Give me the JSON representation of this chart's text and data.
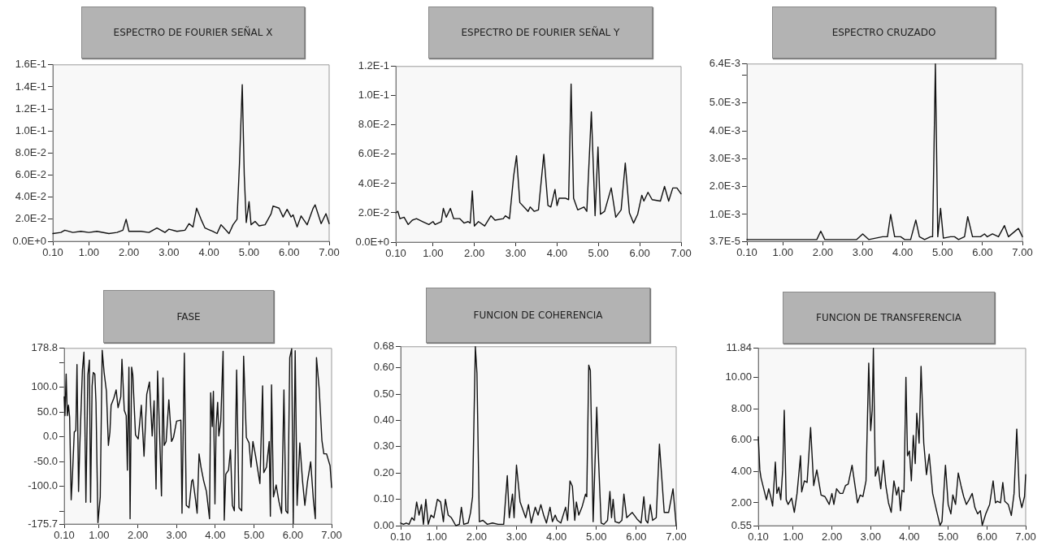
{
  "chart_data": [
    {
      "type": "line",
      "title": "ESPECTRO DE FOURIER SEÑAL X",
      "color": "#111111",
      "marker": "none",
      "line_style": "solid",
      "x": [
        0.1,
        0.3,
        0.4,
        0.6,
        0.8,
        1.0,
        1.2,
        1.5,
        1.7,
        1.85,
        1.93,
        2.0,
        2.3,
        2.5,
        2.7,
        2.9,
        3.0,
        3.2,
        3.4,
        3.5,
        3.6,
        3.69,
        3.8,
        3.9,
        4.1,
        4.2,
        4.3,
        4.4,
        4.5,
        4.6,
        4.7,
        4.76,
        4.83,
        4.88,
        4.93,
        5.0,
        5.05,
        5.15,
        5.25,
        5.4,
        5.55,
        5.6,
        5.75,
        5.85,
        5.95,
        6.05,
        6.1,
        6.2,
        6.3,
        6.45,
        6.6,
        6.65,
        6.8,
        6.92,
        7.0
      ],
      "values": [
        0.007,
        0.008,
        0.01,
        0.008,
        0.009,
        0.008,
        0.009,
        0.007,
        0.008,
        0.01,
        0.02,
        0.009,
        0.009,
        0.008,
        0.012,
        0.008,
        0.011,
        0.009,
        0.01,
        0.016,
        0.013,
        0.03,
        0.02,
        0.012,
        0.009,
        0.007,
        0.015,
        0.011,
        0.007,
        0.015,
        0.02,
        0.07,
        0.142,
        0.06,
        0.017,
        0.036,
        0.015,
        0.018,
        0.014,
        0.015,
        0.025,
        0.032,
        0.03,
        0.022,
        0.029,
        0.022,
        0.024,
        0.013,
        0.023,
        0.015,
        0.03,
        0.033,
        0.016,
        0.025,
        0.016
      ],
      "xlim": [
        0.1,
        7.0
      ],
      "xticks": [
        {
          "value": 0.1,
          "label": "0.10"
        },
        {
          "value": 1,
          "label": "1.00"
        },
        {
          "value": 2,
          "label": "2.00"
        },
        {
          "value": 3,
          "label": "3.00"
        },
        {
          "value": 4,
          "label": "4.00"
        },
        {
          "value": 5,
          "label": "5.00"
        },
        {
          "value": 6,
          "label": "6.00"
        },
        {
          "value": 7,
          "label": "7.00"
        }
      ],
      "ylim": [
        0,
        0.16
      ],
      "yticks": [
        {
          "value": 0,
          "label": "0.0E+0"
        },
        {
          "value": 0.02,
          "label": "2.0E-2"
        },
        {
          "value": 0.04,
          "label": "4.0E-2"
        },
        {
          "value": 0.06,
          "label": "6.0E-2"
        },
        {
          "value": 0.08,
          "label": "8.0E-2"
        },
        {
          "value": 0.1,
          "label": "1.0E-1"
        },
        {
          "value": 0.12,
          "label": "1.2E-1"
        },
        {
          "value": 0.14,
          "label": "1.4E-1"
        },
        {
          "value": 0.16,
          "label": "1.6E-1"
        }
      ]
    },
    {
      "type": "line",
      "title": "ESPECTRO DE FOURIER SEÑAL Y",
      "color": "#111111",
      "marker": "none",
      "line_style": "solid",
      "x": [
        0.1,
        0.15,
        0.2,
        0.3,
        0.4,
        0.5,
        0.6,
        0.75,
        0.9,
        1.0,
        1.05,
        1.2,
        1.25,
        1.32,
        1.42,
        1.5,
        1.65,
        1.75,
        1.85,
        1.9,
        1.95,
        2.0,
        2.1,
        2.25,
        2.4,
        2.5,
        2.7,
        2.75,
        2.85,
        2.95,
        3.02,
        3.1,
        3.3,
        3.35,
        3.45,
        3.55,
        3.68,
        3.78,
        3.85,
        3.95,
        4.0,
        4.05,
        4.2,
        4.28,
        4.34,
        4.4,
        4.5,
        4.65,
        4.72,
        4.83,
        4.92,
        4.99,
        5.05,
        5.15,
        5.31,
        5.42,
        5.55,
        5.65,
        5.75,
        5.85,
        5.95,
        6.05,
        6.1,
        6.2,
        6.3,
        6.5,
        6.6,
        6.7,
        6.8,
        6.9,
        7.0
      ],
      "values": [
        0.02,
        0.021,
        0.016,
        0.017,
        0.012,
        0.015,
        0.016,
        0.014,
        0.012,
        0.014,
        0.012,
        0.014,
        0.023,
        0.017,
        0.023,
        0.016,
        0.016,
        0.013,
        0.014,
        0.013,
        0.035,
        0.011,
        0.014,
        0.011,
        0.018,
        0.015,
        0.016,
        0.018,
        0.016,
        0.045,
        0.059,
        0.027,
        0.021,
        0.024,
        0.021,
        0.022,
        0.06,
        0.025,
        0.024,
        0.036,
        0.025,
        0.03,
        0.03,
        0.029,
        0.108,
        0.03,
        0.022,
        0.024,
        0.021,
        0.089,
        0.018,
        0.065,
        0.019,
        0.021,
        0.037,
        0.017,
        0.022,
        0.054,
        0.02,
        0.013,
        0.019,
        0.032,
        0.028,
        0.034,
        0.029,
        0.028,
        0.038,
        0.028,
        0.037,
        0.037,
        0.033
      ],
      "xlim": [
        0.1,
        7.0
      ],
      "xticks": [
        {
          "value": 0.1,
          "label": "0.10"
        },
        {
          "value": 1,
          "label": "1.00"
        },
        {
          "value": 2,
          "label": "2.00"
        },
        {
          "value": 3,
          "label": "3.00"
        },
        {
          "value": 4,
          "label": "4.00"
        },
        {
          "value": 5,
          "label": "5.00"
        },
        {
          "value": 6,
          "label": "6.00"
        },
        {
          "value": 7,
          "label": "7.00"
        }
      ],
      "ylim": [
        0,
        0.12
      ],
      "yticks": [
        {
          "value": 0,
          "label": "0.0E+0"
        },
        {
          "value": 0.02,
          "label": "2.0E-2"
        },
        {
          "value": 0.04,
          "label": "4.0E-2"
        },
        {
          "value": 0.06,
          "label": "6.0E-2"
        },
        {
          "value": 0.08,
          "label": "8.0E-2"
        },
        {
          "value": 0.1,
          "label": "1.0E-1"
        },
        {
          "value": 0.12,
          "label": "1.2E-1"
        }
      ]
    },
    {
      "type": "line",
      "title": "ESPECTRO CRUZADO",
      "color": "#111111",
      "marker": "none",
      "line_style": "solid",
      "x": [
        0.1,
        0.5,
        1.2,
        1.5,
        1.85,
        1.95,
        2.05,
        2.6,
        2.85,
        3.0,
        3.15,
        3.5,
        3.55,
        3.62,
        3.7,
        3.8,
        3.95,
        4.05,
        4.2,
        4.33,
        4.42,
        4.55,
        4.7,
        4.75,
        4.82,
        4.88,
        4.95,
        5.02,
        5.2,
        5.3,
        5.4,
        5.55,
        5.63,
        5.75,
        5.95,
        6.05,
        6.12,
        6.25,
        6.4,
        6.55,
        6.65,
        6.9,
        7.0
      ],
      "values": [
        0.0001,
        0.0001,
        0.0001,
        0.0001,
        0.0001,
        0.0004,
        0.0001,
        0.0001,
        0.0001,
        0.0003,
        0.0001,
        0.0002,
        0.0002,
        0.0002,
        0.001,
        0.0002,
        0.0002,
        0.0001,
        0.0001,
        0.0008,
        0.0002,
        0.0001,
        0.0002,
        0.0002,
        0.0064,
        0.0002,
        0.00122,
        0.00015,
        0.0002,
        0.0002,
        0.0001,
        0.0002,
        0.00092,
        0.0002,
        0.0002,
        0.0003,
        0.0002,
        0.0003,
        0.0002,
        0.0006,
        0.0002,
        0.0005,
        0.0002
      ],
      "xlim": [
        0.1,
        7.0
      ],
      "xticks": [
        {
          "value": 0.1,
          "label": "0.10"
        },
        {
          "value": 1,
          "label": "1.00"
        },
        {
          "value": 2,
          "label": "2.00"
        },
        {
          "value": 3,
          "label": "3.00"
        },
        {
          "value": 4,
          "label": "4.00"
        },
        {
          "value": 5,
          "label": "5.00"
        },
        {
          "value": 6,
          "label": "6.00"
        },
        {
          "value": 7,
          "label": "7.00"
        }
      ],
      "ylim": [
        3.7e-05,
        0.0064
      ],
      "yticks": [
        {
          "value": 3.7e-05,
          "label": "3.7E-5"
        },
        {
          "value": 0.001,
          "label": "1.0E-3"
        },
        {
          "value": 0.002,
          "label": "2.0E-3"
        },
        {
          "value": 0.003,
          "label": "3.0E-3"
        },
        {
          "value": 0.004,
          "label": "4.0E-3"
        },
        {
          "value": 0.005,
          "label": "5.0E-3"
        },
        {
          "value": 0.006,
          "label": null
        },
        {
          "value": 0.0064,
          "label": "6.4E-3"
        }
      ]
    },
    {
      "type": "line",
      "title": "FASE",
      "color": "#111111",
      "marker": "none",
      "line_style": "solid",
      "x": [
        0.1,
        0.12,
        0.15,
        0.18,
        0.21,
        0.24,
        0.28,
        0.31,
        0.36,
        0.4,
        0.43,
        0.47,
        0.5,
        0.57,
        0.61,
        0.66,
        0.71,
        0.75,
        0.78,
        0.82,
        0.85,
        0.89,
        0.92,
        0.97,
        1.03,
        1.08,
        1.13,
        1.19,
        1.24,
        1.28,
        1.31,
        1.38,
        1.44,
        1.49,
        1.56,
        1.59,
        1.65,
        1.7,
        1.73,
        1.77,
        1.8,
        1.84,
        1.87,
        1.94,
        2.01,
        2.09,
        2.16,
        2.23,
        2.3,
        2.37,
        2.42,
        2.47,
        2.51,
        2.56,
        2.61,
        2.65,
        2.68,
        2.73,
        2.8,
        2.87,
        2.92,
        3.0,
        3.11,
        3.14,
        3.2,
        3.25,
        3.32,
        3.39,
        3.42,
        3.49,
        3.53,
        3.58,
        3.63,
        3.7,
        3.77,
        3.85,
        3.88,
        3.92,
        3.95,
        3.99,
        4.02,
        4.06,
        4.09,
        4.14,
        4.2,
        4.23,
        4.27,
        4.34,
        4.39,
        4.44,
        4.49,
        4.55,
        4.61,
        4.68,
        4.73,
        4.8,
        4.87,
        4.92,
        4.97,
        5.04,
        5.15,
        5.22,
        5.25,
        5.32,
        5.39,
        5.42,
        5.45,
        5.5,
        5.57,
        5.64,
        5.71,
        5.77,
        5.82,
        5.87,
        5.92,
        5.97,
        6.01,
        6.06,
        6.11,
        6.18,
        6.25,
        6.31,
        6.38,
        6.46,
        6.53,
        6.58,
        6.61,
        6.68,
        6.75,
        6.8,
        6.87,
        6.96,
        7.0
      ],
      "values": [
        81,
        43,
        127,
        43,
        64,
        40,
        -127,
        -83,
        10,
        13,
        146,
        -110,
        -23,
        135,
        171,
        -132,
        125,
        155,
        -132,
        103,
        130,
        127,
        70,
        -173,
        -121,
        175,
        130,
        92,
        -17,
        10,
        64,
        78,
        95,
        59,
        81,
        157,
        54,
        43,
        -67,
        141,
        -165,
        141,
        125,
        4,
        -4,
        64,
        -39,
        86,
        111,
        2,
        73,
        -105,
        133,
        10,
        -119,
        119,
        -17,
        -9,
        75,
        -9,
        -1,
        32,
        34,
        -154,
        169,
        -138,
        -143,
        -89,
        -86,
        -127,
        -154,
        -34,
        -61,
        -89,
        -110,
        -165,
        89,
        21,
        92,
        -135,
        21,
        70,
        2,
        32,
        173,
        -168,
        -75,
        -67,
        -26,
        -138,
        -149,
        135,
        -143,
        -149,
        163,
        -1,
        -12,
        -61,
        -9,
        -39,
        -94,
        103,
        -72,
        -61,
        -9,
        -160,
        105,
        -121,
        -97,
        -130,
        -154,
        95,
        -149,
        -154,
        160,
        178,
        -175,
        174,
        -138,
        -12,
        -89,
        -138,
        -89,
        -50,
        -127,
        -165,
        160,
        97,
        -7,
        -34,
        -34,
        -58,
        -102
      ],
      "xlim": [
        0.1,
        7.0
      ],
      "xticks": [
        {
          "value": 0.1,
          "label": "0.10"
        },
        {
          "value": 1,
          "label": "1.00"
        },
        {
          "value": 2,
          "label": "2.00"
        },
        {
          "value": 3,
          "label": "3.00"
        },
        {
          "value": 4,
          "label": "4.00"
        },
        {
          "value": 5,
          "label": "5.00"
        },
        {
          "value": 6,
          "label": "6.00"
        },
        {
          "value": 7,
          "label": "7.00"
        }
      ],
      "ylim": [
        -175.7,
        178.8
      ],
      "yticks": [
        {
          "value": -175.7,
          "label": "-175.7"
        },
        {
          "value": -150,
          "label": null
        },
        {
          "value": -100,
          "label": "-100.0"
        },
        {
          "value": -50,
          "label": "-50.0"
        },
        {
          "value": 0,
          "label": "0.0"
        },
        {
          "value": 50,
          "label": "50.0"
        },
        {
          "value": 100,
          "label": "100.0"
        },
        {
          "value": 150,
          "label": null
        },
        {
          "value": 178.8,
          "label": "178.8"
        }
      ]
    },
    {
      "type": "line",
      "title": "FUNCION DE COHERENCIA",
      "color": "#111111",
      "marker": "none",
      "line_style": "solid",
      "x": [
        0.1,
        0.17,
        0.24,
        0.31,
        0.38,
        0.44,
        0.5,
        0.56,
        0.62,
        0.67,
        0.73,
        0.79,
        0.86,
        0.93,
        1.02,
        1.1,
        1.17,
        1.22,
        1.29,
        1.37,
        1.48,
        1.57,
        1.62,
        1.68,
        1.79,
        1.85,
        1.9,
        1.97,
        2.01,
        2.07,
        2.16,
        2.27,
        2.4,
        2.54,
        2.68,
        2.77,
        2.82,
        2.9,
        2.94,
        3.0,
        3.09,
        3.16,
        3.23,
        3.3,
        3.37,
        3.47,
        3.54,
        3.61,
        3.68,
        3.75,
        3.84,
        3.9,
        3.97,
        4.02,
        4.11,
        4.23,
        4.28,
        4.34,
        4.4,
        4.46,
        4.5,
        4.56,
        4.64,
        4.73,
        4.76,
        4.81,
        4.85,
        4.92,
        5.01,
        5.05,
        5.12,
        5.19,
        5.28,
        5.34,
        5.38,
        5.42,
        5.47,
        5.57,
        5.64,
        5.69,
        5.76,
        5.83,
        5.9,
        6.02,
        6.12,
        6.19,
        6.24,
        6.29,
        6.35,
        6.41,
        6.5,
        6.58,
        6.64,
        6.7,
        6.81,
        6.92,
        7.0
      ],
      "values": [
        0.01,
        0.005,
        0.01,
        0.005,
        0.03,
        0.02,
        0.09,
        0.04,
        0.08,
        0.005,
        0.1,
        0.005,
        0.04,
        0.03,
        0.1,
        0.09,
        0.015,
        0.1,
        0.04,
        0.03,
        0,
        0.005,
        0.07,
        0.005,
        0.01,
        0.05,
        0.11,
        0.68,
        0.58,
        0.015,
        0.02,
        0.005,
        0.01,
        0.005,
        0.005,
        0.19,
        0.03,
        0.12,
        0.03,
        0.23,
        0.09,
        0.06,
        0.03,
        0.08,
        0.01,
        0.07,
        0.04,
        0.08,
        0.04,
        0.01,
        0.07,
        0.015,
        0.04,
        0.02,
        0.01,
        0.07,
        0.02,
        0.17,
        0.15,
        0.02,
        0.09,
        0.04,
        0.07,
        0.12,
        0.11,
        0.61,
        0.59,
        0.015,
        0.45,
        0.27,
        0.01,
        0.005,
        0.02,
        0.13,
        0.03,
        0.1,
        0.015,
        0.01,
        0.02,
        0.12,
        0.03,
        0.04,
        0.05,
        0.025,
        0.01,
        0.11,
        0.02,
        0.01,
        0.08,
        0.02,
        0.03,
        0.31,
        0.18,
        0.05,
        0.05,
        0.14,
        0
      ],
      "xlim": [
        0.1,
        7.0
      ],
      "xticks": [
        {
          "value": 0.1,
          "label": "0.10"
        },
        {
          "value": 1,
          "label": "1.00"
        },
        {
          "value": 2,
          "label": "2.00"
        },
        {
          "value": 3,
          "label": "3.00"
        },
        {
          "value": 4,
          "label": "4.00"
        },
        {
          "value": 5,
          "label": "5.00"
        },
        {
          "value": 6,
          "label": "6.00"
        },
        {
          "value": 7,
          "label": "7.00"
        }
      ],
      "ylim": [
        0,
        0.68
      ],
      "yticks": [
        {
          "value": 0,
          "label": "0.00"
        },
        {
          "value": 0.1,
          "label": "0.10"
        },
        {
          "value": 0.2,
          "label": "0.20"
        },
        {
          "value": 0.3,
          "label": "0.30"
        },
        {
          "value": 0.4,
          "label": "0.40"
        },
        {
          "value": 0.5,
          "label": "0.50"
        },
        {
          "value": 0.6,
          "label": "0.60"
        },
        {
          "value": 0.68,
          "label": "0.68"
        }
      ]
    },
    {
      "type": "line",
      "title": "FUNCION DE TRANSFERENCIA",
      "color": "#111111",
      "marker": "none",
      "line_style": "solid",
      "x": [
        0.1,
        0.14,
        0.17,
        0.24,
        0.31,
        0.37,
        0.42,
        0.47,
        0.54,
        0.58,
        0.63,
        0.68,
        0.73,
        0.77,
        0.82,
        0.87,
        0.96,
        1.03,
        1.1,
        1.19,
        1.22,
        1.29,
        1.36,
        1.45,
        1.53,
        1.61,
        1.72,
        1.82,
        1.93,
        2.0,
        2.05,
        2.12,
        2.21,
        2.28,
        2.35,
        2.42,
        2.52,
        2.59,
        2.66,
        2.73,
        2.8,
        2.88,
        2.95,
        3.0,
        3.04,
        3.07,
        3.12,
        3.19,
        3.26,
        3.33,
        3.39,
        3.46,
        3.53,
        3.6,
        3.67,
        3.72,
        3.77,
        3.81,
        3.86,
        3.91,
        3.95,
        4.0,
        4.05,
        4.1,
        4.15,
        4.19,
        4.25,
        4.3,
        4.37,
        4.44,
        4.51,
        4.6,
        4.7,
        4.79,
        4.84,
        4.93,
        5.0,
        5.07,
        5.12,
        5.19,
        5.26,
        5.33,
        5.4,
        5.47,
        5.54,
        5.62,
        5.69,
        5.76,
        5.83,
        5.88,
        5.97,
        6.07,
        6.16,
        6.22,
        6.27,
        6.35,
        6.41,
        6.46,
        6.55,
        6.63,
        6.7,
        6.77,
        6.84,
        6.9,
        6.97,
        7.0
      ],
      "values": [
        6.2,
        4.1,
        3.6,
        2.9,
        2.2,
        2.9,
        2.4,
        1.8,
        4.6,
        2.6,
        3.0,
        2.2,
        4.1,
        7.9,
        2.2,
        1.9,
        2.3,
        1.4,
        2.6,
        5.0,
        2.7,
        3.4,
        3.3,
        6.8,
        3.1,
        4.1,
        2.5,
        2.4,
        1.9,
        2.6,
        1.9,
        2.9,
        2.6,
        2.6,
        3.1,
        3.2,
        4.4,
        3.2,
        2.0,
        2.5,
        2.4,
        3.4,
        10.9,
        6.6,
        7.9,
        11.84,
        3.7,
        4.3,
        2.9,
        4.7,
        3.1,
        2.0,
        1.4,
        3.4,
        2.5,
        3.0,
        1.5,
        2.8,
        2.7,
        10.0,
        5.0,
        5.3,
        3.4,
        6.3,
        4.5,
        7.7,
        5.8,
        10.7,
        5.8,
        3.8,
        5.1,
        2.6,
        1.5,
        0.57,
        0.8,
        4.4,
        1.9,
        1.3,
        2.5,
        1.9,
        3.9,
        3.1,
        2.4,
        1.9,
        2.2,
        2.6,
        1.7,
        1.3,
        1.5,
        0.57,
        1.3,
        1.9,
        3.4,
        2.0,
        2.1,
        2.0,
        3.3,
        2.1,
        1.9,
        1.2,
        2.6,
        6.7,
        2.4,
        1.7,
        2.4,
        3.8
      ],
      "xlim": [
        0.1,
        7.0
      ],
      "xticks": [
        {
          "value": 0.1,
          "label": "0.10"
        },
        {
          "value": 1,
          "label": "1.00"
        },
        {
          "value": 2,
          "label": "2.00"
        },
        {
          "value": 3,
          "label": "3.00"
        },
        {
          "value": 4,
          "label": "4.00"
        },
        {
          "value": 5,
          "label": "5.00"
        },
        {
          "value": 6,
          "label": "6.00"
        },
        {
          "value": 7,
          "label": "7.00"
        }
      ],
      "ylim": [
        0.55,
        11.84
      ],
      "yticks": [
        {
          "value": 0.55,
          "label": "0.55"
        },
        {
          "value": 2,
          "label": "2.00"
        },
        {
          "value": 4,
          "label": "4.00"
        },
        {
          "value": 6,
          "label": "6.00"
        },
        {
          "value": 8,
          "label": "8.00"
        },
        {
          "value": 10,
          "label": "10.00"
        },
        {
          "value": 11.84,
          "label": "11.84"
        }
      ]
    }
  ]
}
